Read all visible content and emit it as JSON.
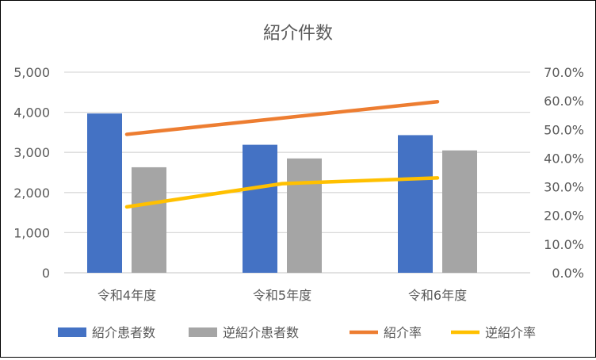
{
  "chart_data": {
    "type": "bar+line",
    "title": "紹介件数",
    "categories": [
      "令和4年度",
      "令和5年度",
      "令和6年度"
    ],
    "left_axis": {
      "min": 0,
      "max": 5000,
      "step": 1000,
      "ticks": [
        "0",
        "1,000",
        "2,000",
        "3,000",
        "4,000",
        "5,000"
      ]
    },
    "right_axis": {
      "min": 0,
      "max": 70,
      "step": 10,
      "ticks": [
        "0.0%",
        "10.0%",
        "20.0%",
        "30.0%",
        "40.0%",
        "50.0%",
        "60.0%",
        "70.0%"
      ]
    },
    "grid": true,
    "legend_position": "bottom",
    "series": [
      {
        "name": "紹介患者数",
        "type": "bar",
        "axis": "left",
        "color": "#4472C4",
        "values": [
          3970,
          3190,
          3430
        ]
      },
      {
        "name": "逆紹介患者数",
        "type": "bar",
        "axis": "left",
        "color": "#A5A5A5",
        "values": [
          2630,
          2850,
          3050
        ]
      },
      {
        "name": "紹介率",
        "type": "line",
        "axis": "right",
        "color": "#ED7D31",
        "values": [
          48.3,
          54.0,
          59.7
        ]
      },
      {
        "name": "逆紹介率",
        "type": "line",
        "axis": "right",
        "color": "#FFC000",
        "values": [
          23.0,
          31.1,
          33.1
        ]
      }
    ]
  }
}
